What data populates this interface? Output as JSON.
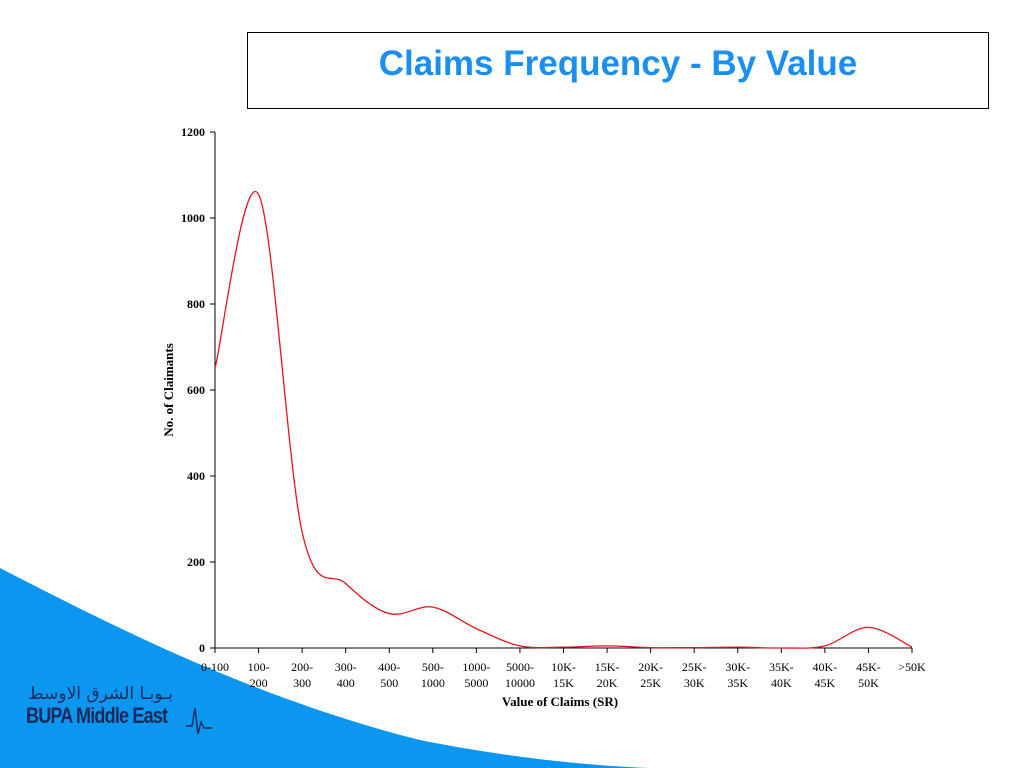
{
  "slide": {
    "title": "Claims Frequency - By Value",
    "accent_color": "#1a8ff0",
    "swoosh_color": "#0b97f0"
  },
  "logo": {
    "arabic_text": "بـوبـا الشرق الاوسط",
    "english_text": "BUPA Middle East",
    "icon": "heartbeat-pulse-icon",
    "color": "#1a2a5a"
  },
  "chart_data": {
    "type": "line",
    "title": "",
    "xlabel": "Value of Claims (SR)",
    "ylabel": "No. of Claimants",
    "ylim": [
      0,
      1200
    ],
    "yticks": [
      0,
      200,
      400,
      600,
      800,
      1000,
      1200
    ],
    "grid": false,
    "legend": "none",
    "line_color": "#e8141c",
    "categories": [
      [
        "0-100"
      ],
      [
        "100-",
        "200"
      ],
      [
        "200-",
        "300"
      ],
      [
        "300-",
        "400"
      ],
      [
        "400-",
        "500"
      ],
      [
        "500-",
        "1000"
      ],
      [
        "1000-",
        "5000"
      ],
      [
        "5000-",
        "10000"
      ],
      [
        "10K-",
        "15K"
      ],
      [
        "15K-",
        "20K"
      ],
      [
        "20K-",
        "25K"
      ],
      [
        "25K-",
        "30K"
      ],
      [
        "30K-",
        "35K"
      ],
      [
        "35K-",
        "40K"
      ],
      [
        "40K-",
        "45K"
      ],
      [
        "45K-",
        "50K"
      ],
      [
        ">50K"
      ]
    ],
    "series": [
      {
        "values": [
          650,
          1055,
          270,
          150,
          80,
          95,
          45,
          5,
          2,
          5,
          1,
          1,
          2,
          0,
          5,
          48,
          2
        ]
      }
    ]
  }
}
